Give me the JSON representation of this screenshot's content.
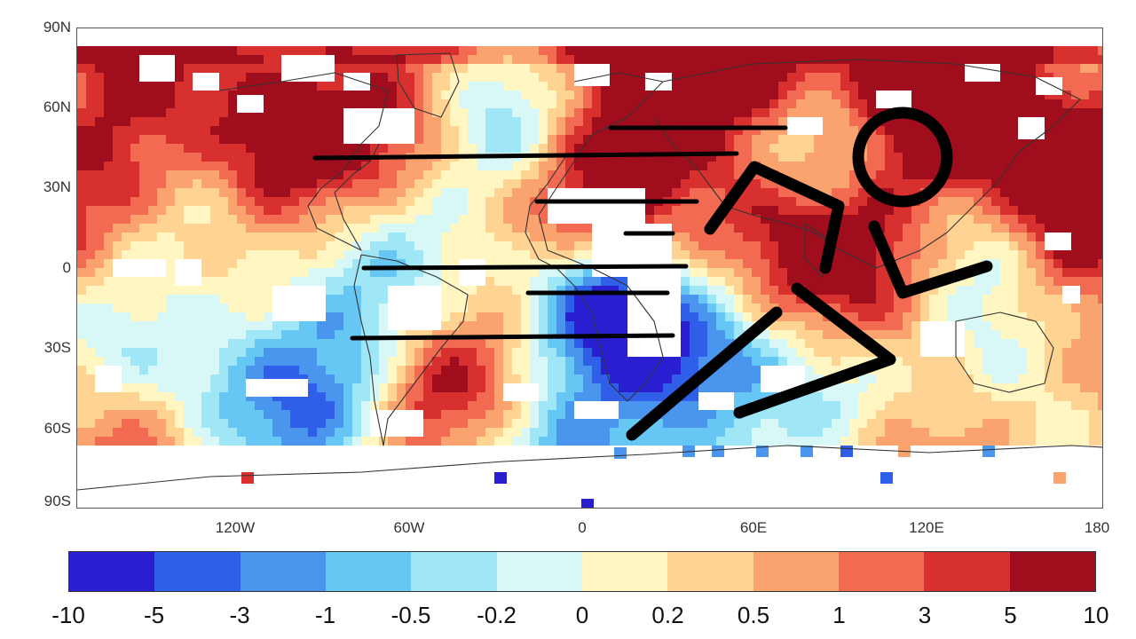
{
  "map": {
    "lat_labels": [
      "90N",
      "60N",
      "30N",
      "0",
      "30S",
      "60S",
      "90S"
    ],
    "lon_labels": [
      "120W",
      "60W",
      "0",
      "60E",
      "120E",
      "180"
    ]
  },
  "colorbar": {
    "labels": [
      "-10",
      "-5",
      "-3",
      "-1",
      "-0.5",
      "-0.2",
      "0",
      "0.2",
      "0.5",
      "1",
      "3",
      "5",
      "10"
    ],
    "colors": [
      "#2a1fd0",
      "#2f5ee8",
      "#4a96ee",
      "#66c7f5",
      "#9fe6f7",
      "#d8f7f7",
      "#fff6c2",
      "#ffd493",
      "#fba36e",
      "#f26a52",
      "#d8302f",
      "#a00e1e"
    ]
  },
  "overlay": {
    "icon": "running-person-icon",
    "color": "#000000"
  }
}
